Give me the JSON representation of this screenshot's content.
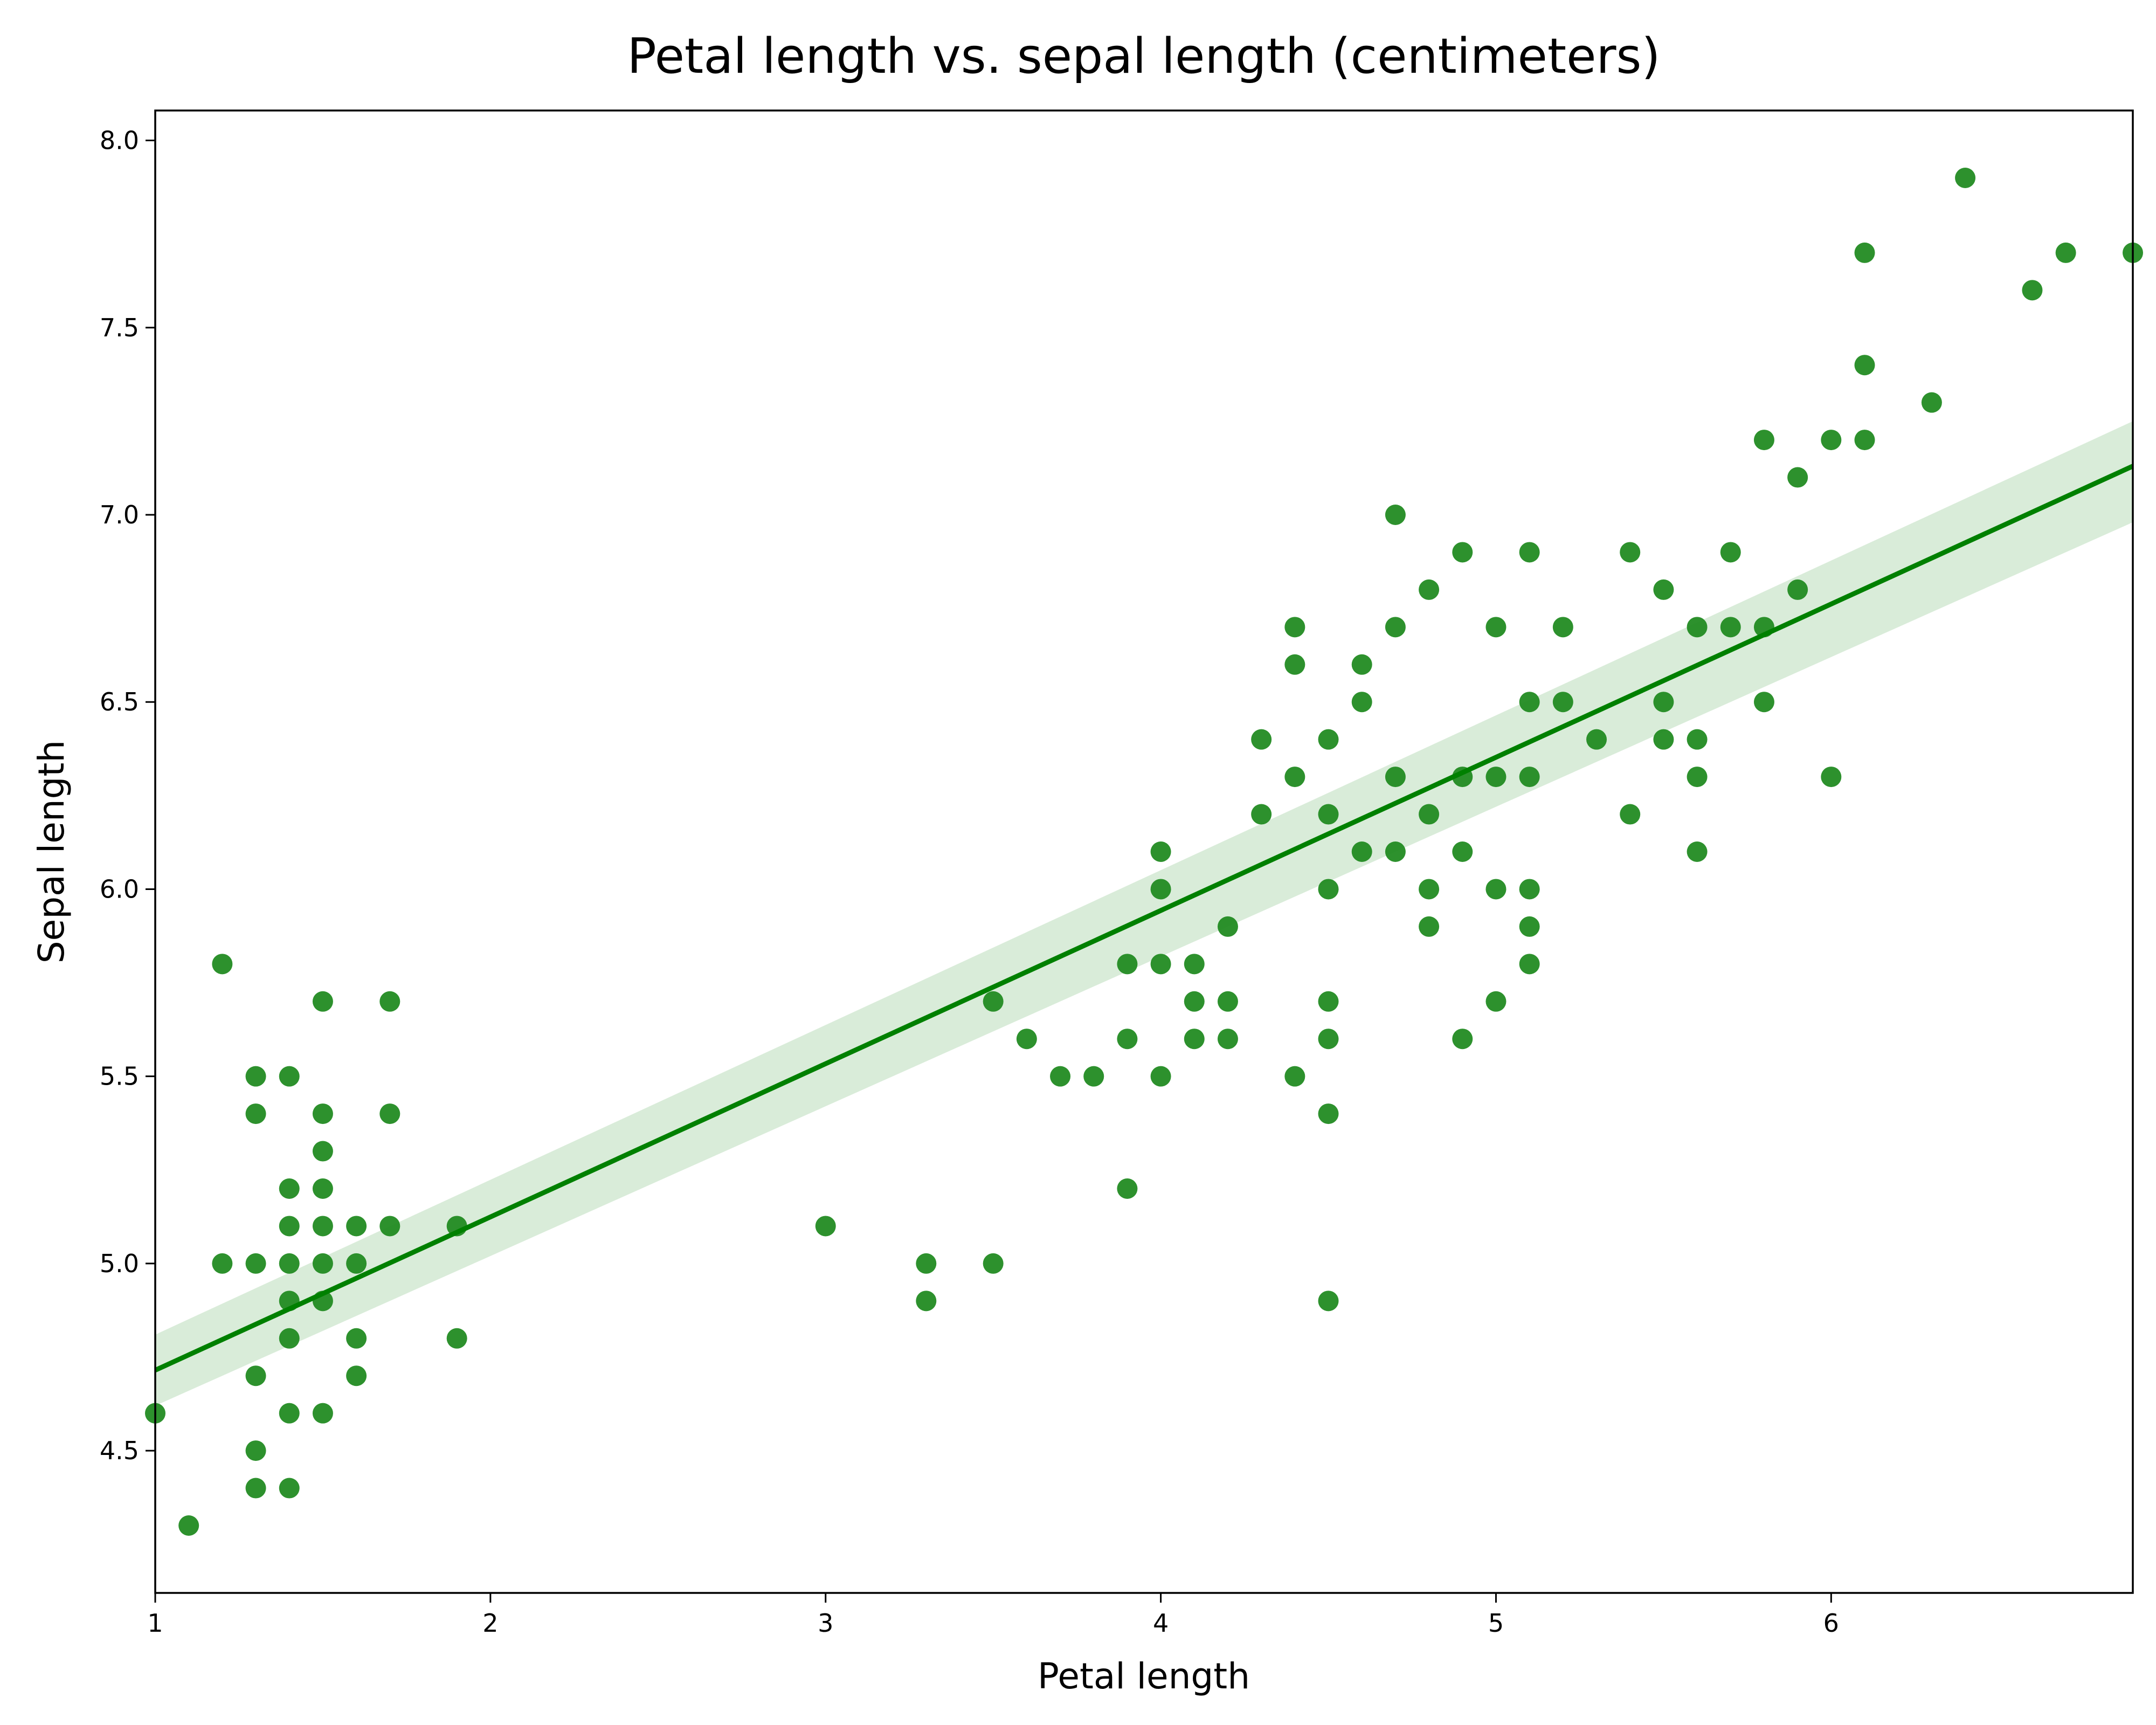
{
  "chart_data": {
    "type": "scatter",
    "title": "Petal length vs. sepal length (centimeters)",
    "xlabel": "Petal length",
    "ylabel": "Sepal length",
    "xlim": [
      1.0,
      6.9
    ],
    "ylim": [
      4.12,
      8.08
    ],
    "x_ticks": [
      1,
      2,
      3,
      4,
      5,
      6
    ],
    "y_ticks": [
      4.5,
      5.0,
      5.5,
      6.0,
      6.5,
      7.0,
      7.5,
      8.0
    ],
    "x_tick_labels": [
      "1",
      "2",
      "3",
      "4",
      "5",
      "6"
    ],
    "y_tick_labels": [
      "4.5",
      "5.0",
      "5.5",
      "6.0",
      "6.5",
      "7.0",
      "7.5",
      "8.0"
    ],
    "grid": false,
    "colors": {
      "points": "#228B22",
      "line": "#008000",
      "band": "#d9ecd9"
    },
    "regression": {
      "x": [
        1.0,
        6.9
      ],
      "y": [
        4.715,
        7.13
      ],
      "ci_upper": [
        4.81,
        7.25
      ],
      "ci_lower": [
        4.62,
        6.98
      ]
    },
    "points": [
      [
        1.0,
        4.6
      ],
      [
        1.1,
        4.3
      ],
      [
        1.2,
        5.8
      ],
      [
        1.2,
        5.0
      ],
      [
        1.3,
        5.5
      ],
      [
        1.3,
        5.4
      ],
      [
        1.3,
        5.0
      ],
      [
        1.3,
        4.7
      ],
      [
        1.3,
        4.5
      ],
      [
        1.3,
        4.4
      ],
      [
        1.4,
        5.5
      ],
      [
        1.4,
        5.2
      ],
      [
        1.4,
        5.1
      ],
      [
        1.4,
        5.0
      ],
      [
        1.4,
        4.9
      ],
      [
        1.4,
        4.8
      ],
      [
        1.4,
        4.6
      ],
      [
        1.4,
        4.4
      ],
      [
        1.5,
        5.7
      ],
      [
        1.5,
        5.4
      ],
      [
        1.5,
        5.3
      ],
      [
        1.5,
        5.2
      ],
      [
        1.5,
        5.1
      ],
      [
        1.5,
        5.0
      ],
      [
        1.5,
        4.9
      ],
      [
        1.5,
        4.6
      ],
      [
        1.6,
        5.1
      ],
      [
        1.6,
        5.0
      ],
      [
        1.6,
        4.8
      ],
      [
        1.6,
        4.7
      ],
      [
        1.7,
        5.7
      ],
      [
        1.7,
        5.4
      ],
      [
        1.7,
        5.1
      ],
      [
        1.9,
        5.1
      ],
      [
        1.9,
        4.8
      ],
      [
        3.0,
        5.1
      ],
      [
        3.3,
        5.0
      ],
      [
        3.3,
        4.9
      ],
      [
        3.5,
        5.7
      ],
      [
        3.5,
        5.0
      ],
      [
        3.6,
        5.6
      ],
      [
        3.7,
        5.5
      ],
      [
        3.8,
        5.5
      ],
      [
        3.9,
        5.8
      ],
      [
        3.9,
        5.6
      ],
      [
        3.9,
        5.2
      ],
      [
        4.0,
        6.1
      ],
      [
        4.0,
        6.0
      ],
      [
        4.0,
        5.8
      ],
      [
        4.0,
        5.5
      ],
      [
        4.1,
        5.8
      ],
      [
        4.1,
        5.7
      ],
      [
        4.1,
        5.6
      ],
      [
        4.2,
        5.9
      ],
      [
        4.2,
        5.7
      ],
      [
        4.2,
        5.6
      ],
      [
        4.3,
        6.4
      ],
      [
        4.3,
        6.2
      ],
      [
        4.4,
        6.7
      ],
      [
        4.4,
        6.6
      ],
      [
        4.4,
        6.3
      ],
      [
        4.4,
        5.5
      ],
      [
        4.5,
        6.4
      ],
      [
        4.5,
        6.2
      ],
      [
        4.5,
        6.0
      ],
      [
        4.5,
        5.7
      ],
      [
        4.5,
        5.6
      ],
      [
        4.5,
        5.4
      ],
      [
        4.5,
        4.9
      ],
      [
        4.6,
        6.6
      ],
      [
        4.6,
        6.5
      ],
      [
        4.6,
        6.1
      ],
      [
        4.7,
        7.0
      ],
      [
        4.7,
        6.7
      ],
      [
        4.7,
        6.3
      ],
      [
        4.7,
        6.1
      ],
      [
        4.8,
        6.8
      ],
      [
        4.8,
        6.2
      ],
      [
        4.8,
        6.0
      ],
      [
        4.8,
        5.9
      ],
      [
        4.9,
        6.9
      ],
      [
        4.9,
        6.3
      ],
      [
        4.9,
        6.1
      ],
      [
        4.9,
        5.6
      ],
      [
        5.0,
        6.7
      ],
      [
        5.0,
        6.3
      ],
      [
        5.0,
        6.0
      ],
      [
        5.0,
        5.7
      ],
      [
        5.1,
        6.9
      ],
      [
        5.1,
        6.5
      ],
      [
        5.1,
        6.3
      ],
      [
        5.1,
        6.0
      ],
      [
        5.1,
        5.9
      ],
      [
        5.1,
        5.8
      ],
      [
        5.2,
        6.7
      ],
      [
        5.2,
        6.5
      ],
      [
        5.3,
        6.4
      ],
      [
        5.4,
        6.9
      ],
      [
        5.4,
        6.2
      ],
      [
        5.5,
        6.8
      ],
      [
        5.5,
        6.5
      ],
      [
        5.5,
        6.4
      ],
      [
        5.6,
        6.7
      ],
      [
        5.6,
        6.4
      ],
      [
        5.6,
        6.3
      ],
      [
        5.6,
        6.1
      ],
      [
        5.7,
        6.9
      ],
      [
        5.7,
        6.7
      ],
      [
        5.8,
        7.2
      ],
      [
        5.8,
        6.7
      ],
      [
        5.8,
        6.5
      ],
      [
        5.9,
        7.1
      ],
      [
        5.9,
        6.8
      ],
      [
        6.0,
        7.2
      ],
      [
        6.0,
        6.3
      ],
      [
        6.1,
        7.7
      ],
      [
        6.1,
        7.4
      ],
      [
        6.1,
        7.2
      ],
      [
        6.3,
        7.3
      ],
      [
        6.4,
        7.9
      ],
      [
        6.6,
        7.6
      ],
      [
        6.7,
        7.7
      ],
      [
        6.9,
        7.7
      ]
    ]
  }
}
